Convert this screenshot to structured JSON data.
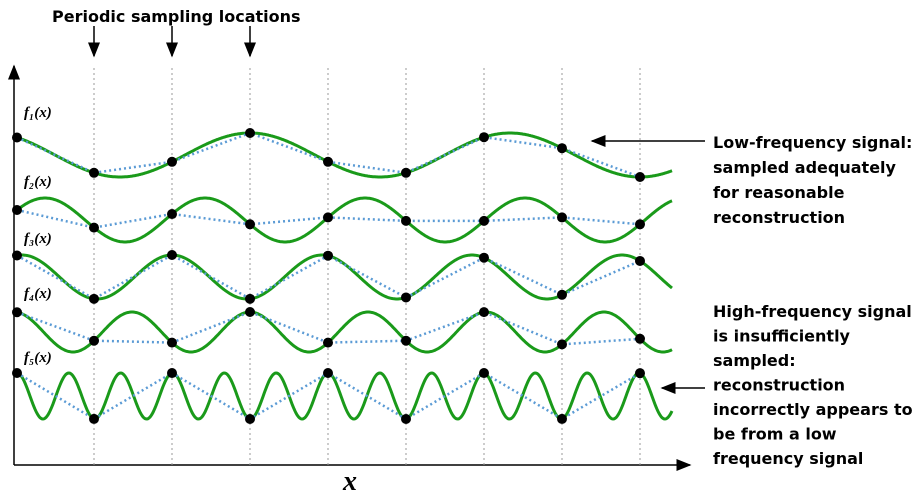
{
  "title": "Periodic sampling locations",
  "x_axis_label": "x",
  "signals": [
    {
      "label": "f₁(x)"
    },
    {
      "label": "f₂(x)"
    },
    {
      "label": "f₃(x)"
    },
    {
      "label": "f₄(x)"
    },
    {
      "label": "f₅(x)"
    }
  ],
  "annotations": {
    "low_frequency": [
      "Low-frequency signal:",
      "sampled adequately",
      "for reasonable",
      "reconstruction"
    ],
    "high_frequency": [
      "High-frequency signal",
      "is insufficiently",
      "sampled:",
      "reconstruction",
      "incorrectly appears to",
      "be from a low",
      "frequency signal"
    ]
  }
}
